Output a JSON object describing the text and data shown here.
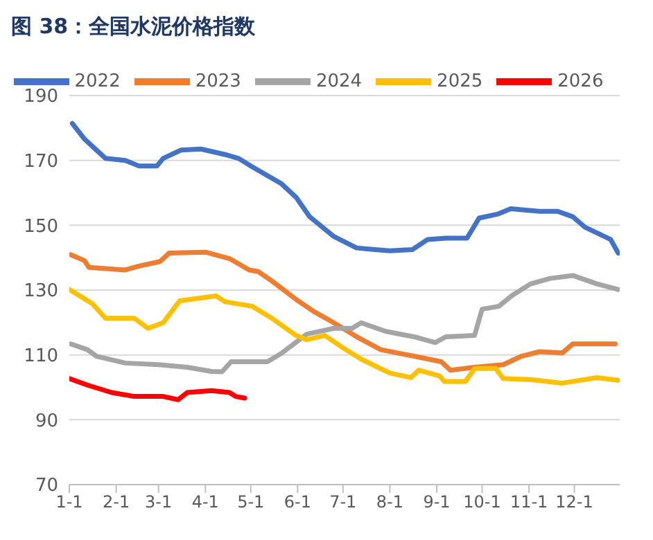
{
  "chart_data": {
    "type": "line",
    "title": "图 38：全国水泥价格指数",
    "xlim": [
      "--01-01",
      "--12-31"
    ],
    "xticks": [
      {
        "value": "--01-01",
        "label": "1-1"
      },
      {
        "value": "--02-01",
        "label": "2-1"
      },
      {
        "value": "--03-01",
        "label": "3-1"
      },
      {
        "value": "--04-01",
        "label": "4-1"
      },
      {
        "value": "--05-01",
        "label": "5-1"
      },
      {
        "value": "--06-01",
        "label": "6-1"
      },
      {
        "value": "--07-01",
        "label": "7-1"
      },
      {
        "value": "--08-01",
        "label": "8-1"
      },
      {
        "value": "--09-01",
        "label": "9-1"
      },
      {
        "value": "--10-01",
        "label": "10-1"
      },
      {
        "value": "--11-01",
        "label": "11-1"
      },
      {
        "value": "--12-01",
        "label": "12-1"
      }
    ],
    "ylim": [
      70,
      190
    ],
    "yticks": [
      70,
      90,
      110,
      130,
      150,
      170,
      190
    ],
    "grid": "y",
    "legend": "top",
    "marker": "none",
    "line_style": "solid",
    "series": [
      {
        "name": "2022",
        "color": "#4472c4",
        "x": [
          "--01-03",
          "--01-11",
          "--01-17",
          "--01-25",
          "--02-07",
          "--02-16",
          "--02-28",
          "--03-04",
          "--03-16",
          "--03-29",
          "--04-14",
          "--04-23",
          "--05-02",
          "--05-21",
          "--05-31",
          "--06-09",
          "--06-25",
          "--07-10",
          "--07-22",
          "--08-01",
          "--08-16",
          "--08-26",
          "--09-07",
          "--09-21",
          "--09-29",
          "--10-11",
          "--10-20",
          "--11-08",
          "--11-20",
          "--11-30",
          "--12-08",
          "--12-25",
          "--12-30"
        ],
        "values": [
          181.4,
          176.6,
          174,
          170.6,
          170,
          168.3,
          168.3,
          170.6,
          173.2,
          173.5,
          171.8,
          170.6,
          168,
          162.9,
          158.6,
          152.6,
          146.5,
          143,
          142.5,
          142.1,
          142.5,
          145.6,
          146,
          146,
          152.2,
          153.4,
          155.1,
          154.3,
          154.3,
          152.6,
          149.4,
          145.6,
          141.4
        ]
      },
      {
        "name": "2023",
        "color": "#ed7d31",
        "x": [
          "--01-02",
          "--01-11",
          "--01-14",
          "--02-07",
          "--02-16",
          "--03-02",
          "--03-08",
          "--04-01",
          "--04-17",
          "--04-30",
          "--05-06",
          "--05-15",
          "--05-31",
          "--06-12",
          "--06-25",
          "--07-10",
          "--07-26",
          "--08-17",
          "--09-04",
          "--09-10",
          "--09-26",
          "--10-15",
          "--10-27",
          "--11-08",
          "--11-23",
          "--11-30",
          "--12-28"
        ],
        "values": [
          140.9,
          139.1,
          137,
          136.2,
          137.4,
          138.8,
          141.4,
          141.7,
          139.7,
          136.2,
          135.7,
          132.8,
          127.1,
          123.3,
          119.9,
          115.6,
          111.6,
          109.6,
          107.9,
          105.3,
          106.2,
          107,
          109.6,
          111,
          110.6,
          113.4,
          113.4
        ]
      },
      {
        "name": "2024",
        "color": "#a5a5a5",
        "x": [
          "--01-02",
          "--01-13",
          "--01-19",
          "--02-07",
          "--03-01",
          "--03-20",
          "--04-05",
          "--04-12",
          "--04-18",
          "--05-12",
          "--05-21",
          "--06-07",
          "--06-25",
          "--07-07",
          "--07-13",
          "--07-29",
          "--08-17",
          "--08-31",
          "--09-07",
          "--09-26",
          "--10-01",
          "--10-12",
          "--10-21",
          "--11-02",
          "--11-15",
          "--11-30",
          "--12-16",
          "--12-30"
        ],
        "values": [
          113.4,
          111.6,
          109.6,
          107.5,
          107,
          106.2,
          104.9,
          104.8,
          107.9,
          107.9,
          110.4,
          116.4,
          118.2,
          118.2,
          119.9,
          117.3,
          115.6,
          113.8,
          115.6,
          116,
          124.1,
          125,
          128.4,
          131.9,
          133.6,
          134.5,
          131.9,
          130.2
        ]
      },
      {
        "name": "2025",
        "color": "#ffc000",
        "x": [
          "--01-01",
          "--01-16",
          "--01-25",
          "--02-13",
          "--02-22",
          "--03-04",
          "--03-15",
          "--04-08",
          "--04-14",
          "--05-02",
          "--05-15",
          "--05-31",
          "--06-07",
          "--06-19",
          "--07-01",
          "--07-13",
          "--08-01",
          "--08-15",
          "--08-20",
          "--09-03",
          "--09-06",
          "--09-20",
          "--09-26",
          "--10-10",
          "--10-15",
          "--11-02",
          "--11-23",
          "--12-16",
          "--12-30"
        ],
        "values": [
          130.2,
          125.9,
          121.3,
          121.3,
          118.2,
          119.9,
          126.7,
          128.2,
          126.4,
          125,
          121.3,
          116,
          114.7,
          116,
          112.2,
          108.7,
          104.4,
          103,
          105.3,
          103.5,
          101.8,
          101.8,
          105.8,
          105.8,
          102.7,
          102.4,
          101.3,
          103,
          102.2
        ]
      },
      {
        "name": "2026",
        "color": "#ff0000",
        "x": [
          "--01-01",
          "--01-13",
          "--01-29",
          "--02-13",
          "--03-04",
          "--03-14",
          "--03-20",
          "--04-05",
          "--04-17",
          "--04-21",
          "--04-27"
        ],
        "values": [
          102.7,
          100.7,
          98.4,
          97.2,
          97.2,
          96.2,
          98.4,
          99,
          98.4,
          97.2,
          96.7
        ]
      }
    ]
  }
}
